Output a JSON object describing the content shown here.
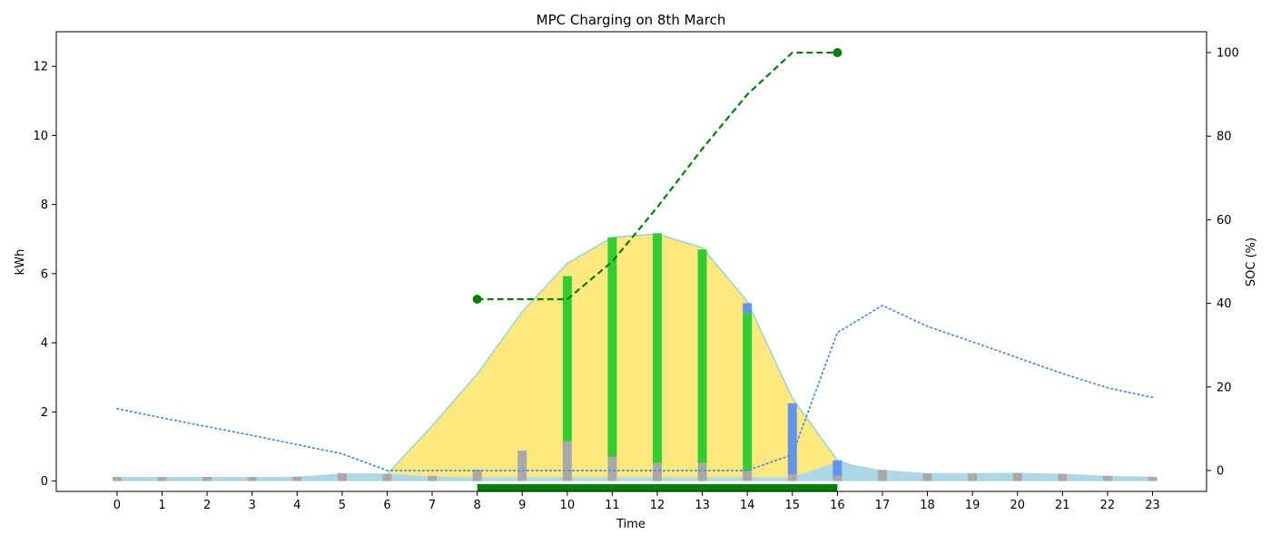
{
  "chart_data": {
    "type": "bar",
    "title": "MPC Charging on 8th March",
    "xlabel": "Time",
    "ylabel": "kWh",
    "ylabel_right": "SOC (%)",
    "x": [
      0,
      1,
      2,
      3,
      4,
      5,
      6,
      7,
      8,
      9,
      10,
      11,
      12,
      13,
      14,
      15,
      16,
      17,
      18,
      19,
      20,
      21,
      22,
      23
    ],
    "xlim": [
      -1.35,
      24.2
    ],
    "ylim": [
      -0.3,
      13.0
    ],
    "ylim_right": [
      -5,
      105
    ],
    "yticks": [
      0,
      2,
      4,
      6,
      8,
      10,
      12
    ],
    "yticks_right": [
      0,
      20,
      40,
      60,
      80,
      100
    ],
    "grid": false,
    "colors": {
      "pv_fill": "#FFE97F",
      "pv_edge": "#87CEEB",
      "load_band": "#ADD8E6",
      "base_load_bar": "#A9A9A9",
      "ev_charging_bar": "#32CD32",
      "grid_bar": "#6495ED",
      "soc_line": "#008000",
      "price_line": "#4A90E2",
      "availability_bar": "#008000"
    },
    "series": [
      {
        "kind": "area",
        "values": [
          0.1,
          0.1,
          0.1,
          0.1,
          0.1,
          0.1,
          0.2,
          1.6,
          3.1,
          4.9,
          6.3,
          7.05,
          7.15,
          6.75,
          5.2,
          2.4,
          0.6,
          0.15,
          0.05,
          0.03,
          0.02,
          0.02,
          0.02,
          0.02
        ]
      },
      {
        "kind": "band",
        "values": [
          0.11,
          0.11,
          0.11,
          0.11,
          0.13,
          0.22,
          0.22,
          0.13,
          0.11,
          0.11,
          0.11,
          0.11,
          0.11,
          0.11,
          0.11,
          0.11,
          0.55,
          0.32,
          0.23,
          0.23,
          0.24,
          0.21,
          0.15,
          0.13
        ]
      },
      {
        "kind": "bar",
        "values": [
          0.12,
          0.12,
          0.12,
          0.12,
          0.12,
          0.23,
          0.2,
          0.15,
          0.33,
          0.88,
          1.15,
          0.7,
          0.52,
          0.52,
          0.3,
          0.2,
          0.15,
          0.32,
          0.22,
          0.22,
          0.23,
          0.21,
          0.15,
          0.12
        ]
      },
      {
        "kind": "bar-stacked",
        "values": [
          0,
          0,
          0,
          0,
          0,
          0,
          0,
          0,
          0,
          0,
          4.78,
          6.35,
          6.65,
          6.18,
          4.55,
          0,
          0,
          0,
          0,
          0,
          0,
          0,
          0,
          0
        ]
      },
      {
        "kind": "bar-stacked",
        "values": [
          0,
          0,
          0,
          0,
          0,
          0,
          0,
          0,
          0,
          0,
          0,
          0,
          0,
          0,
          0.3,
          2.05,
          0.45,
          0,
          0,
          0,
          0,
          0,
          0,
          0
        ]
      },
      {
        "kind": "line",
        "axis": "right",
        "style": "dashed",
        "x": [
          8,
          9,
          10,
          11,
          12,
          13,
          14,
          15,
          16
        ],
        "values": [
          41,
          41,
          41,
          50,
          63,
          77,
          90,
          100,
          100
        ]
      },
      {
        "kind": "line",
        "axis": "right",
        "style": "dotted",
        "values": [
          14.8,
          12.6,
          10.5,
          8.4,
          6.2,
          4.0,
          0,
          0,
          0,
          0,
          0,
          0,
          0,
          0,
          0,
          3.8,
          33.0,
          39.5,
          34.5,
          30.8,
          27.0,
          23.2,
          19.8,
          17.5
        ]
      }
    ],
    "availability": {
      "start": 8,
      "end": 16
    }
  }
}
